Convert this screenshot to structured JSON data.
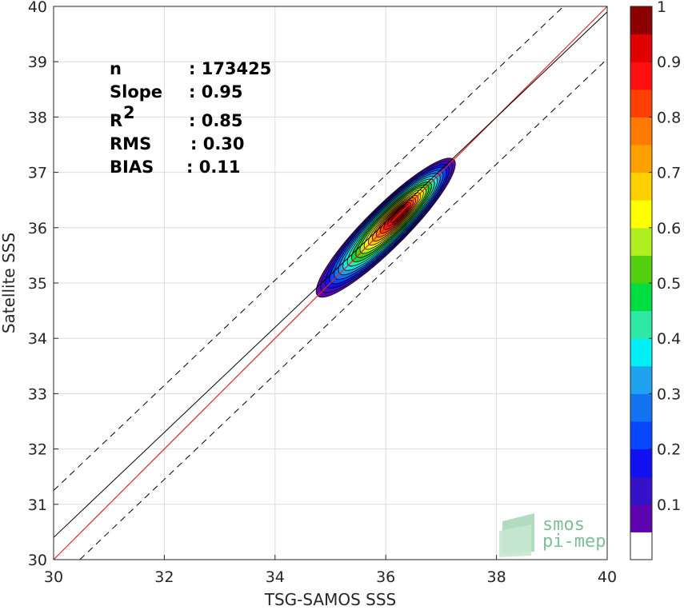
{
  "chart_data": {
    "type": "heatmap",
    "xlabel": "TSG-SAMOS SSS",
    "ylabel": "Satellite SSS",
    "xlim": [
      30,
      40
    ],
    "ylim": [
      30,
      40
    ],
    "x_ticks": [
      "30",
      "32",
      "34",
      "36",
      "38",
      "40"
    ],
    "y_ticks": [
      "30",
      "31",
      "32",
      "33",
      "34",
      "35",
      "36",
      "37",
      "38",
      "39",
      "40"
    ],
    "grid": true,
    "stats": [
      {
        "label": "n",
        "value": ": 173425"
      },
      {
        "label": "Slope",
        "value": ": 0.95"
      },
      {
        "label": "R",
        "sup": "2",
        "value": ": 0.85"
      },
      {
        "label": "RMS",
        "value": ": 0.30"
      },
      {
        "label": "BIAS",
        "value": ": 0.11"
      }
    ],
    "lines": {
      "identity": {
        "slope": 1,
        "intercept": 0,
        "color": "#e8201e"
      },
      "regression": {
        "slope": 0.95,
        "intercept": 1.9,
        "color": "#000000"
      },
      "bounds_offset": 0.85
    },
    "density_center": [
      36.0,
      36.0
    ],
    "density_major_axis": [
      1,
      1
    ],
    "colorbar": {
      "ticks": [
        "0.1",
        "0.2",
        "0.3",
        "0.4",
        "0.5",
        "0.6",
        "0.7",
        "0.8",
        "0.9",
        "1"
      ],
      "range": [
        0,
        1
      ],
      "colors": [
        "#ffffff",
        "#5d04b0",
        "#3512c9",
        "#1010f0",
        "#0646ff",
        "#1473f0",
        "#1fa3ee",
        "#00f0f5",
        "#2ee8a6",
        "#00dd40",
        "#52d010",
        "#b0f020",
        "#ffff00",
        "#ffd000",
        "#ffa000",
        "#ff7a00",
        "#ff4000",
        "#ff0f0f",
        "#e00000",
        "#8b0000"
      ]
    },
    "logo": {
      "line1": "smos",
      "line2": "pi-mep"
    }
  }
}
